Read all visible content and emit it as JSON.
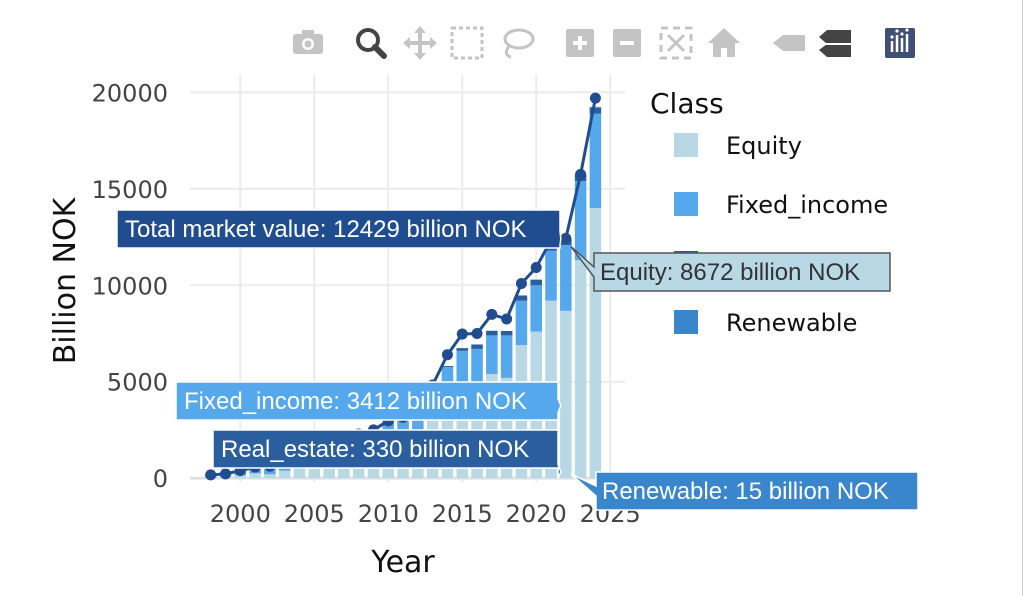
{
  "toolbar": {
    "buttons": [
      {
        "name": "camera-icon",
        "title": "Download plot as a png"
      },
      {
        "name": "zoom-icon",
        "title": "Zoom"
      },
      {
        "name": "pan-icon",
        "title": "Pan"
      },
      {
        "name": "box-select-icon",
        "title": "Box Select"
      },
      {
        "name": "lasso-select-icon",
        "title": "Lasso Select"
      },
      {
        "name": "zoom-in-icon",
        "title": "Zoom in"
      },
      {
        "name": "zoom-out-icon",
        "title": "Zoom out"
      },
      {
        "name": "autoscale-icon",
        "title": "Autoscale"
      },
      {
        "name": "reset-axes-icon",
        "title": "Reset axes"
      },
      {
        "name": "spike-lines-icon",
        "title": "Toggle Spike Lines"
      },
      {
        "name": "compare-hover-icon",
        "title": "Compare data on hover"
      },
      {
        "name": "plotly-logo-icon",
        "title": "Produced with Plotly"
      }
    ]
  },
  "chart_data": {
    "type": "bar",
    "barmode": "stack",
    "xlabel": "Year",
    "ylabel": "Billion NOK",
    "xlim": [
      1996.6,
      2026
    ],
    "ylim": [
      -200,
      20900
    ],
    "xticks": [
      2000,
      2005,
      2010,
      2015,
      2020,
      2025
    ],
    "yticks": [
      0,
      5000,
      10000,
      15000,
      20000
    ],
    "grid": true,
    "legend_title": "Class",
    "legend_position": "right",
    "x": [
      1998,
      1999,
      2000,
      2001,
      2002,
      2003,
      2004,
      2005,
      2006,
      2007,
      2008,
      2009,
      2010,
      2011,
      2012,
      2013,
      2014,
      2015,
      2016,
      2017,
      2018,
      2019,
      2020,
      2021,
      2022,
      2023,
      2024
    ],
    "series": [
      {
        "name": "Equity",
        "color": "#b8d8e6",
        "values": [
          50,
          90,
          150,
          250,
          200,
          380,
          480,
          700,
          900,
          1100,
          1050,
          1600,
          1850,
          1800,
          2300,
          3100,
          3900,
          4600,
          4700,
          5400,
          5200,
          6900,
          7600,
          9200,
          8672,
          11300,
          14000
        ]
      },
      {
        "name": "Fixed_income",
        "color": "#56a8ec",
        "values": [
          120,
          130,
          240,
          320,
          420,
          650,
          520,
          620,
          800,
          900,
          1240,
          900,
          1120,
          1350,
          1350,
          1700,
          1860,
          2000,
          2000,
          2000,
          2200,
          2300,
          2400,
          2600,
          3412,
          4100,
          4900
        ]
      },
      {
        "name": "Real_estate",
        "color": "#2a5e9e",
        "values": [
          0,
          0,
          0,
          0,
          0,
          0,
          0,
          0,
          0,
          0,
          0,
          0,
          0,
          0,
          10,
          30,
          50,
          140,
          230,
          240,
          230,
          270,
          290,
          300,
          330,
          320,
          300
        ]
      },
      {
        "name": "Renewable",
        "color": "#3a86cc",
        "values": [
          0,
          0,
          0,
          0,
          0,
          0,
          0,
          0,
          0,
          0,
          0,
          0,
          0,
          0,
          0,
          0,
          0,
          0,
          0,
          0,
          0,
          0,
          0,
          13,
          15,
          20,
          50
        ]
      }
    ],
    "total_line": {
      "name": "Total market value",
      "color": "#1f4d8f",
      "values": [
        170,
        220,
        390,
        570,
        620,
        1030,
        1000,
        1320,
        1700,
        2000,
        2290,
        2500,
        2970,
        3150,
        3660,
        4830,
        6400,
        7470,
        7500,
        8490,
        8250,
        10090,
        10920,
        12340,
        12429,
        15750,
        19700
      ]
    },
    "hover": {
      "year": 2022,
      "labels": [
        {
          "key": "total",
          "text": "Total market value: 12429 billion NOK",
          "color": "#1f4d8f",
          "text_color": "#ffffff"
        },
        {
          "key": "equity",
          "text": "Equity: 8672 billion NOK",
          "color": "#b8d8e6",
          "text_color": "#333333"
        },
        {
          "key": "fixed",
          "text": "Fixed_income: 3412 billion NOK",
          "color": "#56a8ec",
          "text_color": "#ffffff"
        },
        {
          "key": "real",
          "text": "Real_estate: 330 billion NOK",
          "color": "#2a5e9e",
          "text_color": "#ffffff"
        },
        {
          "key": "renew",
          "text": "Renewable: 15 billion NOK",
          "color": "#3a86cc",
          "text_color": "#ffffff"
        }
      ]
    }
  }
}
